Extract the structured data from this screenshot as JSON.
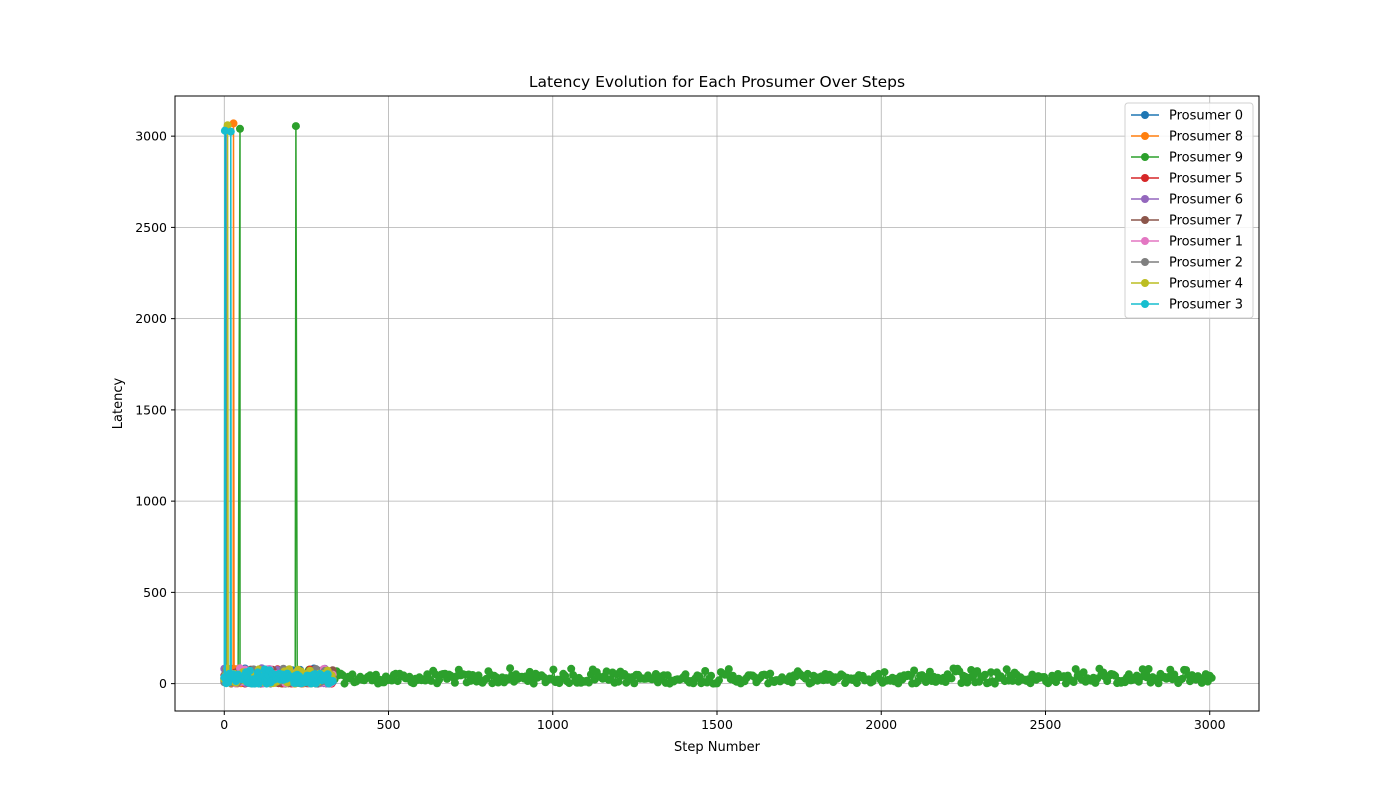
{
  "chart_data": {
    "type": "line",
    "title": "Latency Evolution for Each Prosumer Over Steps",
    "xlabel": "Step Number",
    "ylabel": "Latency",
    "xlim": [
      -150,
      3150
    ],
    "ylim": [
      -150,
      3220
    ],
    "xticks": [
      0,
      500,
      1000,
      1500,
      2000,
      2500,
      3000
    ],
    "yticks": [
      0,
      500,
      1000,
      1500,
      2000,
      2500,
      3000
    ],
    "grid": true,
    "legend_position": "top-right",
    "marker": "circle",
    "series": [
      {
        "name": "Prosumer 0",
        "color": "#1f77b4",
        "x_range": [
          0,
          330
        ],
        "spikes": [
          [
            5,
            3035
          ]
        ]
      },
      {
        "name": "Prosumer 8",
        "color": "#ff7f0e",
        "x_range": [
          0,
          330
        ],
        "spikes": [
          [
            28,
            3070
          ]
        ]
      },
      {
        "name": "Prosumer 9",
        "color": "#2ca02c",
        "x_range": [
          0,
          3010
        ],
        "spikes": [
          [
            48,
            3040
          ],
          [
            218,
            3055
          ]
        ]
      },
      {
        "name": "Prosumer 5",
        "color": "#d62728",
        "x_range": [
          0,
          330
        ],
        "spikes": []
      },
      {
        "name": "Prosumer 6",
        "color": "#9467bd",
        "x_range": [
          0,
          330
        ],
        "spikes": []
      },
      {
        "name": "Prosumer 7",
        "color": "#8c564b",
        "x_range": [
          0,
          330
        ],
        "spikes": []
      },
      {
        "name": "Prosumer 1",
        "color": "#e377c2",
        "x_range": [
          0,
          330
        ],
        "spikes": []
      },
      {
        "name": "Prosumer 2",
        "color": "#7f7f7f",
        "x_range": [
          0,
          330
        ],
        "spikes": []
      },
      {
        "name": "Prosumer 4",
        "color": "#bcbd22",
        "x_range": [
          0,
          330
        ],
        "spikes": [
          [
            10,
            3060
          ]
        ]
      },
      {
        "name": "Prosumer 3",
        "color": "#17becf",
        "x_range": [
          0,
          330
        ],
        "spikes": [
          [
            2,
            3030
          ],
          [
            20,
            3025
          ]
        ]
      }
    ]
  }
}
